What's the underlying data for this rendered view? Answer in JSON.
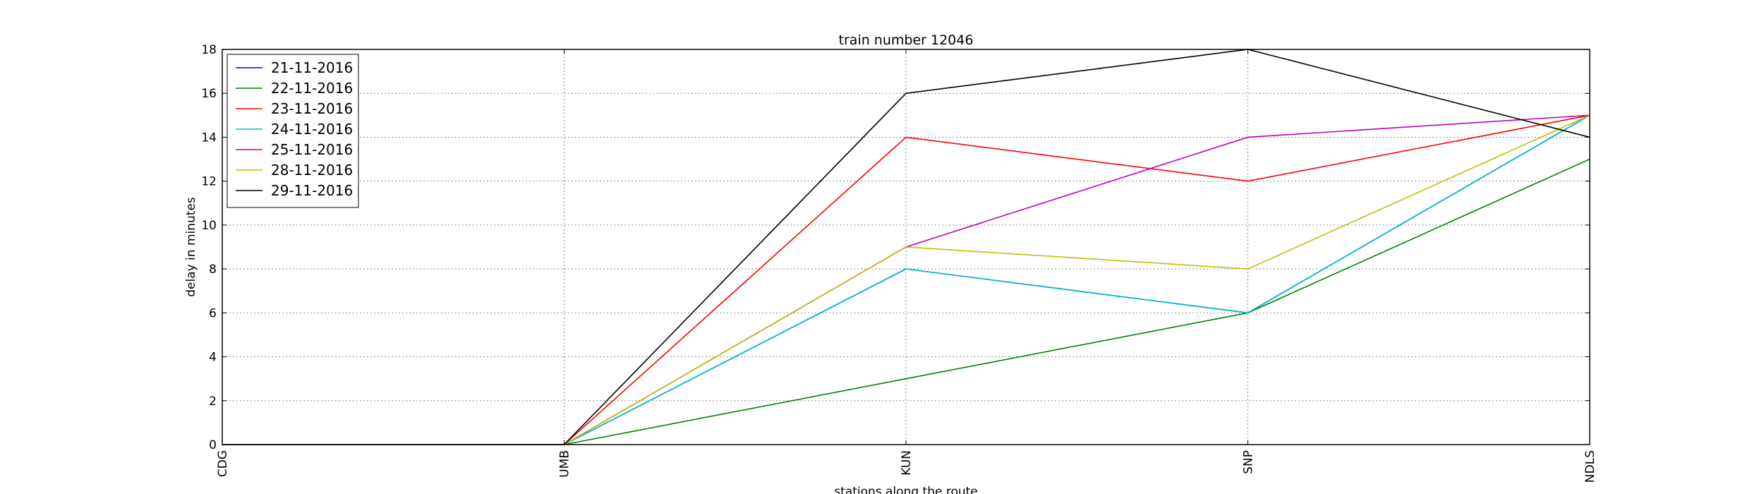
{
  "chart_data": {
    "type": "line",
    "title": "train number 12046",
    "xlabel": "stations along the route",
    "ylabel": "delay in minutes",
    "categories": [
      "CDG",
      "UMB",
      "KUN",
      "SNP",
      "NDLS"
    ],
    "ylim": [
      0,
      18
    ],
    "yticks": [
      0,
      2,
      4,
      6,
      8,
      10,
      12,
      14,
      16,
      18
    ],
    "grid": true,
    "legend_position": "top-left",
    "series": [
      {
        "name": "21-11-2016",
        "color": "#0000ff",
        "values": [
          0,
          0,
          8,
          6,
          15
        ]
      },
      {
        "name": "22-11-2016",
        "color": "#008000",
        "values": [
          0,
          0,
          3,
          6,
          13
        ]
      },
      {
        "name": "23-11-2016",
        "color": "#ff0000",
        "values": [
          0,
          0,
          14,
          12,
          15
        ]
      },
      {
        "name": "24-11-2016",
        "color": "#00bfbf",
        "values": [
          0,
          0,
          8,
          6,
          15
        ]
      },
      {
        "name": "25-11-2016",
        "color": "#bf00bf",
        "values": [
          0,
          0,
          9,
          14,
          15
        ]
      },
      {
        "name": "28-11-2016",
        "color": "#bfbf00",
        "values": [
          0,
          0,
          9,
          8,
          15
        ]
      },
      {
        "name": "29-11-2016",
        "color": "#000000",
        "values": [
          0,
          0,
          16,
          18,
          14
        ]
      }
    ]
  }
}
